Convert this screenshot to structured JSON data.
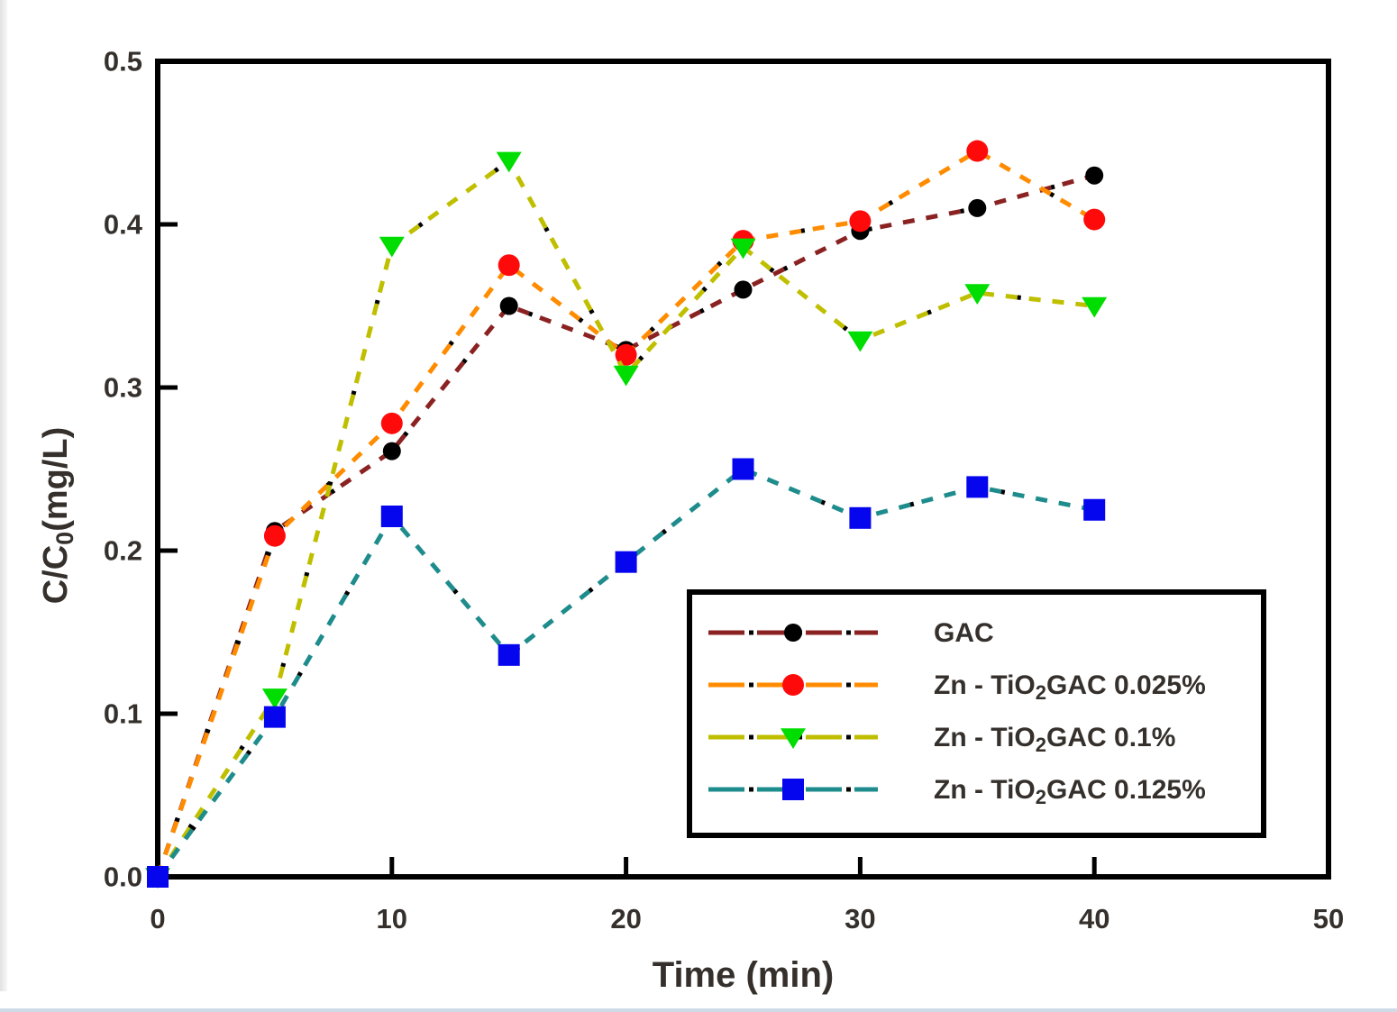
{
  "chart_data": {
    "type": "line",
    "title": "",
    "xlabel": "Time (min)",
    "ylabel": "C/C0(mg/L)",
    "ylabel_parts": [
      {
        "t": "C/C"
      },
      {
        "t": "0",
        "sub": true
      },
      {
        "t": "(mg/L)"
      }
    ],
    "xlim": [
      0,
      50
    ],
    "ylim": [
      0.0,
      0.5
    ],
    "xticks": [
      0,
      10,
      20,
      30,
      40,
      50
    ],
    "xtick_labels": [
      "0",
      "10",
      "20",
      "30",
      "40",
      "50"
    ],
    "yticks": [
      0.0,
      0.1,
      0.2,
      0.3,
      0.4,
      0.5
    ],
    "ytick_labels": [
      "0.0",
      "0.1",
      "0.2",
      "0.3",
      "0.4",
      "0.5"
    ],
    "grid": false,
    "legend_position": "inside lower-right",
    "line_style": "dash-dot",
    "axis_color": "#000000",
    "tick_label_color": "#35302c",
    "x": [
      0,
      5,
      10,
      15,
      20,
      25,
      30,
      35,
      40
    ],
    "series": [
      {
        "name": "GAC",
        "label_parts": [
          {
            "t": "GAC"
          }
        ],
        "line_color": "#8B2222",
        "marker": "circle",
        "marker_color": "#000000",
        "marker_size": 10,
        "values": [
          0,
          0.212,
          0.261,
          0.35,
          0.323,
          0.36,
          0.396,
          0.41,
          0.43
        ]
      },
      {
        "name": "Zn - TiO2GAC 0.025%",
        "label_parts": [
          {
            "t": "Zn - TiO"
          },
          {
            "t": "2",
            "sub": true
          },
          {
            "t": "GAC 0.025%"
          }
        ],
        "line_color": "#FF8C00",
        "marker": "circle",
        "marker_color": "#FF0A0A",
        "marker_size": 12,
        "values": [
          0,
          0.209,
          0.278,
          0.375,
          0.32,
          0.39,
          0.402,
          0.445,
          0.403
        ]
      },
      {
        "name": "Zn - TiO2GAC 0.1%",
        "label_parts": [
          {
            "t": "Zn - TiO"
          },
          {
            "t": "2",
            "sub": true
          },
          {
            "t": "GAC 0.1%"
          }
        ],
        "line_color": "#BFBF00",
        "marker": "triangle-down",
        "marker_color": "#00DD00",
        "marker_size": 13,
        "values": [
          0,
          0.11,
          0.387,
          0.439,
          0.308,
          0.386,
          0.329,
          0.358,
          0.35
        ]
      },
      {
        "name": "Zn - TiO2GAC 0.125%",
        "label_parts": [
          {
            "t": "Zn - TiO"
          },
          {
            "t": "2",
            "sub": true
          },
          {
            "t": "GAC 0.125%"
          }
        ],
        "line_color": "#1E8C8C",
        "marker": "square",
        "marker_color": "#0505EE",
        "marker_size": 12,
        "values": [
          0,
          0.098,
          0.221,
          0.136,
          0.193,
          0.25,
          0.22,
          0.239,
          0.225
        ]
      }
    ]
  }
}
